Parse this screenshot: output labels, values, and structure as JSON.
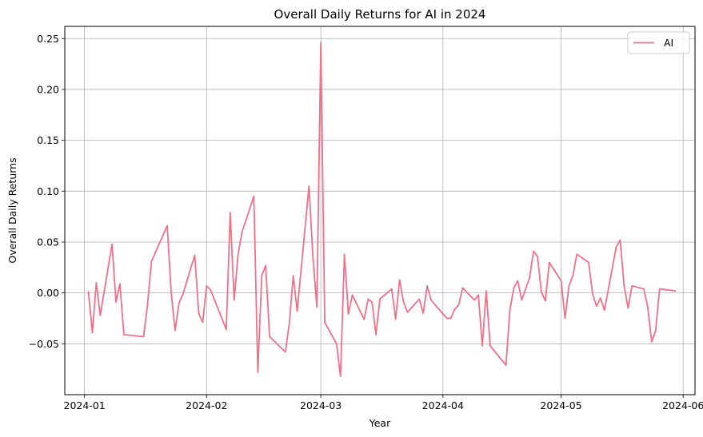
{
  "chart_data": {
    "type": "line",
    "title": "Overall Daily Returns for AI in 2024",
    "xlabel": "Year",
    "ylabel": "Overall Daily Returns",
    "xlim": [
      "2023-12-27",
      "2024-06-04"
    ],
    "ylim": [
      -0.1,
      0.262
    ],
    "x_ticks": [
      "2024-01-01",
      "2024-02-01",
      "2024-03-01",
      "2024-04-01",
      "2024-05-01",
      "2024-06-01"
    ],
    "x_tick_labels": [
      "2024-01",
      "2024-02",
      "2024-03",
      "2024-04",
      "2024-05",
      "2024-06"
    ],
    "y_ticks": [
      -0.05,
      0.0,
      0.05,
      0.1,
      0.15,
      0.2,
      0.25
    ],
    "y_tick_labels": [
      "−0.05",
      "0.00",
      "0.05",
      "0.10",
      "0.15",
      "0.20",
      "0.25"
    ],
    "grid": true,
    "legend_position": "top-right",
    "series": [
      {
        "name": "AI",
        "color": "#f0708a",
        "points": [
          [
            "2024-01-02",
            0.001
          ],
          [
            "2024-01-03",
            -0.039
          ],
          [
            "2024-01-04",
            0.01
          ],
          [
            "2024-01-05",
            -0.022
          ],
          [
            "2024-01-08",
            0.048
          ],
          [
            "2024-01-09",
            -0.009
          ],
          [
            "2024-01-10",
            0.009
          ],
          [
            "2024-01-11",
            -0.041
          ],
          [
            "2024-01-16",
            -0.043
          ],
          [
            "2024-01-17",
            -0.012
          ],
          [
            "2024-01-18",
            0.031
          ],
          [
            "2024-01-22",
            0.066
          ],
          [
            "2024-01-23",
            0.001
          ],
          [
            "2024-01-24",
            -0.037
          ],
          [
            "2024-01-25",
            -0.01
          ],
          [
            "2024-01-26",
            -0.001
          ],
          [
            "2024-01-29",
            0.037
          ],
          [
            "2024-01-30",
            -0.02
          ],
          [
            "2024-01-31",
            -0.029
          ],
          [
            "2024-02-01",
            0.007
          ],
          [
            "2024-02-02",
            0.003
          ],
          [
            "2024-02-06",
            -0.036
          ],
          [
            "2024-02-07",
            0.079
          ],
          [
            "2024-02-08",
            -0.007
          ],
          [
            "2024-02-09",
            0.038
          ],
          [
            "2024-02-10",
            0.06
          ],
          [
            "2024-02-13",
            0.095
          ],
          [
            "2024-02-14",
            -0.078
          ],
          [
            "2024-02-15",
            0.017
          ],
          [
            "2024-02-16",
            0.027
          ],
          [
            "2024-02-17",
            -0.043
          ],
          [
            "2024-02-21",
            -0.058
          ],
          [
            "2024-02-22",
            -0.03
          ],
          [
            "2024-02-23",
            0.017
          ],
          [
            "2024-02-24",
            -0.018
          ],
          [
            "2024-02-27",
            0.105
          ],
          [
            "2024-02-28",
            0.035
          ],
          [
            "2024-02-29",
            -0.014
          ],
          [
            "2024-03-01",
            0.246
          ],
          [
            "2024-03-02",
            -0.029
          ],
          [
            "2024-03-05",
            -0.05
          ],
          [
            "2024-03-06",
            -0.082
          ],
          [
            "2024-03-07",
            0.038
          ],
          [
            "2024-03-08",
            -0.021
          ],
          [
            "2024-03-09",
            -0.002
          ],
          [
            "2024-03-12",
            -0.026
          ],
          [
            "2024-03-13",
            -0.006
          ],
          [
            "2024-03-14",
            -0.009
          ],
          [
            "2024-03-15",
            -0.041
          ],
          [
            "2024-03-16",
            -0.006
          ],
          [
            "2024-03-19",
            0.004
          ],
          [
            "2024-03-20",
            -0.026
          ],
          [
            "2024-03-21",
            0.013
          ],
          [
            "2024-03-22",
            -0.009
          ],
          [
            "2024-03-23",
            -0.019
          ],
          [
            "2024-03-26",
            -0.006
          ],
          [
            "2024-03-27",
            -0.02
          ],
          [
            "2024-03-28",
            0.007
          ],
          [
            "2024-03-29",
            -0.007
          ],
          [
            "2024-04-02",
            -0.025
          ],
          [
            "2024-04-03",
            -0.025
          ],
          [
            "2024-04-04",
            -0.016
          ],
          [
            "2024-04-05",
            -0.012
          ],
          [
            "2024-04-06",
            0.005
          ],
          [
            "2024-04-09",
            -0.007
          ],
          [
            "2024-04-10",
            -0.002
          ],
          [
            "2024-04-11",
            -0.052
          ],
          [
            "2024-04-12",
            0.002
          ],
          [
            "2024-04-13",
            -0.052
          ],
          [
            "2024-04-17",
            -0.071
          ],
          [
            "2024-04-18",
            -0.017
          ],
          [
            "2024-04-19",
            0.005
          ],
          [
            "2024-04-20",
            0.012
          ],
          [
            "2024-04-21",
            -0.007
          ],
          [
            "2024-04-23",
            0.015
          ],
          [
            "2024-04-24",
            0.041
          ],
          [
            "2024-04-25",
            0.036
          ],
          [
            "2024-04-26",
            0.001
          ],
          [
            "2024-04-27",
            -0.008
          ],
          [
            "2024-04-28",
            0.03
          ],
          [
            "2024-05-01",
            0.012
          ],
          [
            "2024-05-02",
            -0.025
          ],
          [
            "2024-05-03",
            0.007
          ],
          [
            "2024-05-04",
            0.017
          ],
          [
            "2024-05-05",
            0.038
          ],
          [
            "2024-05-08",
            0.03
          ],
          [
            "2024-05-09",
            -0.001
          ],
          [
            "2024-05-10",
            -0.013
          ],
          [
            "2024-05-11",
            -0.005
          ],
          [
            "2024-05-12",
            -0.017
          ],
          [
            "2024-05-15",
            0.045
          ],
          [
            "2024-05-16",
            0.052
          ],
          [
            "2024-05-17",
            0.007
          ],
          [
            "2024-05-18",
            -0.015
          ],
          [
            "2024-05-19",
            0.007
          ],
          [
            "2024-05-22",
            0.004
          ],
          [
            "2024-05-23",
            -0.014
          ],
          [
            "2024-05-24",
            -0.048
          ],
          [
            "2024-05-25",
            -0.037
          ],
          [
            "2024-05-26",
            0.004
          ],
          [
            "2024-05-30",
            0.002
          ]
        ]
      }
    ]
  }
}
